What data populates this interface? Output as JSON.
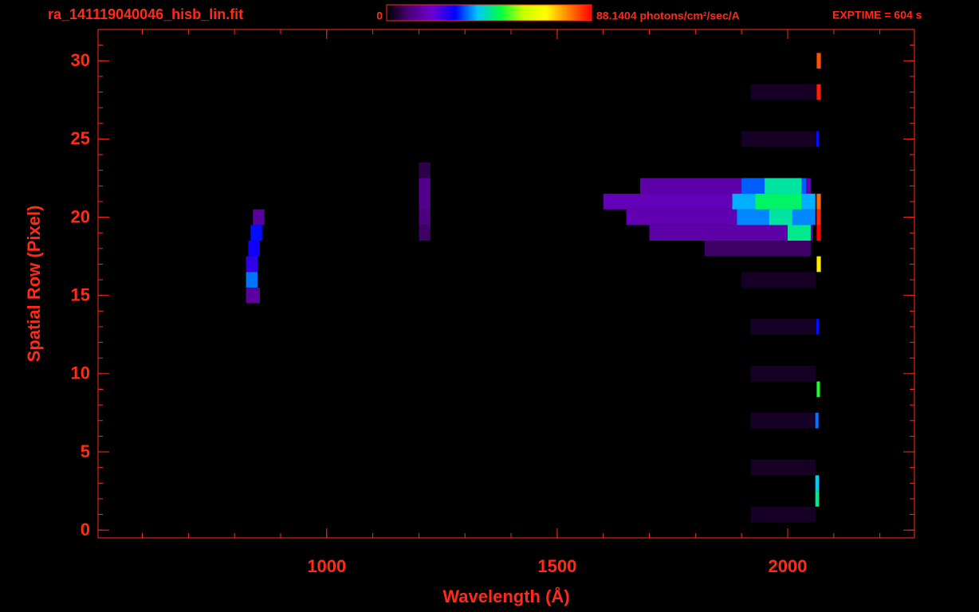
{
  "chart_data": {
    "type": "image",
    "title": "ra_141119040046_hisb_lin.fit",
    "annotation": "EXPTIME = 604 s",
    "xlabel": "Wavelength (Å)",
    "ylabel": "Spatial Row (Pixel)",
    "text_color": "#ff2a1a",
    "xlim": [
      504,
      2275
    ],
    "ylim": [
      -0.5,
      32
    ],
    "xticks": [
      1000,
      1500,
      2000
    ],
    "xminorticks": [
      600,
      700,
      800,
      900,
      1000,
      1100,
      1200,
      1300,
      1400,
      1500,
      1600,
      1700,
      1800,
      1900,
      2000,
      2100,
      2200
    ],
    "yticks": [
      0,
      5,
      10,
      15,
      20,
      25,
      30
    ],
    "yminorticks": [
      0,
      1,
      2,
      3,
      4,
      5,
      6,
      7,
      8,
      9,
      10,
      11,
      12,
      13,
      14,
      15,
      16,
      17,
      18,
      19,
      20,
      21,
      22,
      23,
      24,
      25,
      26,
      27,
      28,
      29,
      30,
      31,
      32
    ],
    "colorbar": {
      "ticks": [
        0,
        {
          "value": 88.1404,
          "label": "88.1404 photons/cm²/sec/A"
        }
      ],
      "colors": [
        "#000000",
        "#4b007a",
        "#6e00d0",
        "#0000ff",
        "#00c8ff",
        "#00ff40",
        "#c8ff00",
        "#ffff00",
        "#ff8000",
        "#ff0000"
      ]
    },
    "bands": [
      {
        "x0": 1920,
        "x1": 2060,
        "row": 1,
        "value": 3
      },
      {
        "x0": 1920,
        "x1": 2060,
        "row": 4,
        "value": 3
      },
      {
        "x0": 1920,
        "x1": 2060,
        "row": 7,
        "value": 3
      },
      {
        "x0": 1920,
        "x1": 2060,
        "row": 10,
        "value": 3
      },
      {
        "x0": 1920,
        "x1": 2060,
        "row": 13,
        "value": 3
      },
      {
        "x0": 1900,
        "x1": 2060,
        "row": 16,
        "value": 3
      },
      {
        "x0": 1900,
        "x1": 2060,
        "row": 25,
        "value": 3
      },
      {
        "x0": 1920,
        "x1": 2060,
        "row": 28,
        "value": 3
      },
      {
        "x0": 1200,
        "x1": 1225,
        "row": 19,
        "value": 8
      },
      {
        "x0": 1200,
        "x1": 1225,
        "row": 20,
        "value": 10
      },
      {
        "x0": 1200,
        "x1": 1225,
        "row": 21,
        "value": 12
      },
      {
        "x0": 1200,
        "x1": 1225,
        "row": 22,
        "value": 12
      },
      {
        "x0": 1200,
        "x1": 1225,
        "row": 23,
        "value": 6
      },
      {
        "x0": 825,
        "x1": 855,
        "row": 15,
        "value": 14
      },
      {
        "x0": 825,
        "x1": 850,
        "row": 16,
        "value": 35
      },
      {
        "x0": 825,
        "x1": 850,
        "row": 17,
        "value": 25
      },
      {
        "x0": 830,
        "x1": 855,
        "row": 18,
        "value": 28
      },
      {
        "x0": 835,
        "x1": 860,
        "row": 19,
        "value": 30
      },
      {
        "x0": 840,
        "x1": 865,
        "row": 20,
        "value": 14
      },
      {
        "x0": 1820,
        "x1": 2050,
        "row": 18,
        "value": 8
      },
      {
        "x0": 1700,
        "x1": 2055,
        "row": 19,
        "value": 15
      },
      {
        "x0": 1650,
        "x1": 2060,
        "row": 20,
        "value": 16
      },
      {
        "x0": 1600,
        "x1": 2060,
        "row": 21,
        "value": 17
      },
      {
        "x0": 1680,
        "x1": 2050,
        "row": 22,
        "value": 15
      },
      {
        "x0": 1890,
        "x1": 2060,
        "row": 20,
        "value": 36
      },
      {
        "x0": 1880,
        "x1": 2060,
        "row": 21,
        "value": 38
      },
      {
        "x0": 1900,
        "x1": 2040,
        "row": 22,
        "value": 34
      },
      {
        "x0": 1930,
        "x1": 2030,
        "row": 21,
        "value": 47
      },
      {
        "x0": 1950,
        "x1": 2030,
        "row": 22,
        "value": 44
      },
      {
        "x0": 1960,
        "x1": 2010,
        "row": 20,
        "value": 44
      },
      {
        "x0": 2000,
        "x1": 2050,
        "row": 19,
        "value": 45
      },
      {
        "x0": 2063,
        "x1": 2072,
        "row": 19,
        "value": 88
      },
      {
        "x0": 2063,
        "x1": 2072,
        "row": 20,
        "value": 85
      },
      {
        "x0": 2063,
        "x1": 2072,
        "row": 21,
        "value": 80
      },
      {
        "x0": 2063,
        "x1": 2072,
        "row": 28,
        "value": 86
      },
      {
        "x0": 2063,
        "x1": 2072,
        "row": 30,
        "value": 82
      },
      {
        "x0": 2063,
        "x1": 2072,
        "row": 17,
        "value": 70
      },
      {
        "x0": 2060,
        "x1": 2068,
        "row": 2,
        "value": 45
      },
      {
        "x0": 2060,
        "x1": 2068,
        "row": 3,
        "value": 40
      },
      {
        "x0": 2063,
        "x1": 2070,
        "row": 9,
        "value": 50
      },
      {
        "x0": 2060,
        "x1": 2067,
        "row": 7,
        "value": 35
      },
      {
        "x0": 2062,
        "x1": 2068,
        "row": 13,
        "value": 30
      },
      {
        "x0": 2062,
        "x1": 2068,
        "row": 25,
        "value": 30
      }
    ]
  }
}
